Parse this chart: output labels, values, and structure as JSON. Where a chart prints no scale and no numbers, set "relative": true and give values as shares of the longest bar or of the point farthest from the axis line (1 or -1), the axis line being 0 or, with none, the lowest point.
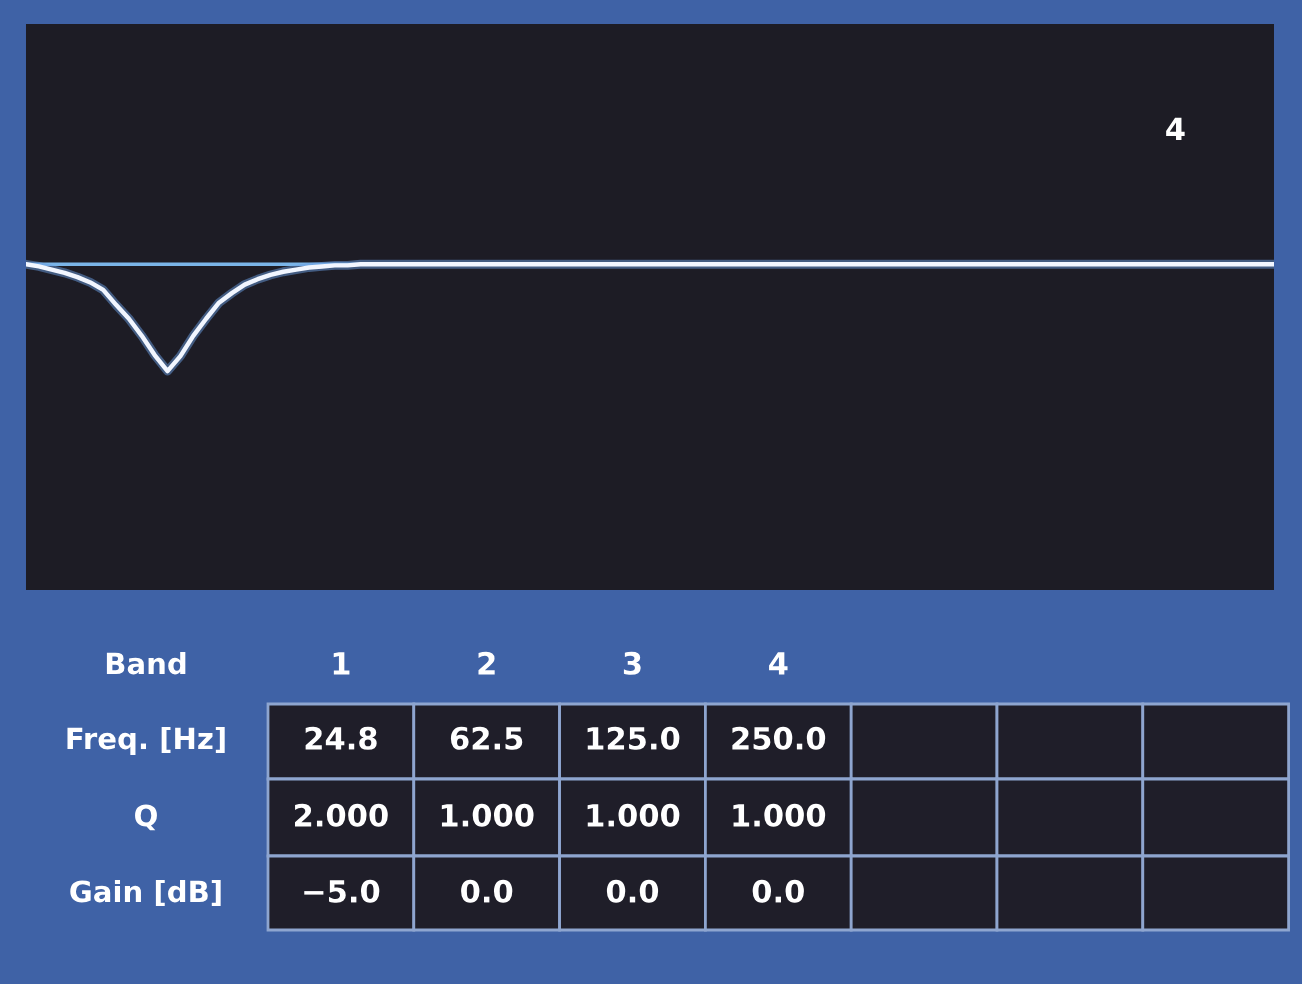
{
  "chart_data": {
    "type": "line",
    "relative": true,
    "categories": [
      null,
      null,
      null,
      null,
      null,
      null,
      null,
      null,
      null,
      null,
      null,
      null,
      null,
      null,
      null,
      null,
      null,
      null,
      null,
      null,
      null,
      null,
      null,
      null,
      null,
      null,
      null,
      null,
      null,
      null,
      null,
      null,
      null,
      null,
      null,
      null,
      null,
      null,
      null,
      null,
      null,
      null,
      null,
      null,
      null,
      null,
      null,
      null,
      null,
      null,
      null,
      null,
      null,
      null,
      null,
      null,
      null,
      null,
      null,
      null,
      null,
      null,
      null,
      null,
      null,
      null,
      null,
      null,
      null,
      null,
      null,
      null,
      null,
      null,
      null,
      null,
      null,
      null,
      null,
      null,
      null,
      null,
      null,
      null,
      null,
      null,
      null,
      null,
      null,
      null,
      null,
      null,
      null,
      null,
      null,
      null,
      null,
      null
    ],
    "series": [
      {
        "color": "#f2f6ff",
        "values": [
          0,
          -0.02,
          -0.05,
          -0.08,
          -0.12,
          -0.17,
          -0.24,
          -0.38,
          -0.51,
          -0.67,
          -0.85,
          -1,
          -0.86,
          -0.67,
          -0.51,
          -0.36,
          -0.27,
          -0.19,
          -0.14,
          -0.1,
          -0.07,
          -0.05,
          -0.03,
          -0.02,
          -0.01,
          -0.01,
          0,
          0,
          0,
          0,
          0,
          0,
          0,
          0,
          0,
          0,
          0,
          0,
          0,
          0,
          0,
          0,
          0,
          0,
          0,
          0,
          0,
          0,
          0,
          0,
          0,
          0,
          0,
          0,
          0,
          0,
          0,
          0,
          0,
          0,
          0,
          0,
          0,
          0,
          0,
          0,
          0,
          0,
          0,
          0,
          0,
          0,
          0,
          0,
          0,
          0,
          0,
          0,
          0,
          0,
          0,
          0,
          0,
          0,
          0,
          0,
          0,
          0,
          0,
          0,
          0,
          0,
          0,
          0,
          0,
          0,
          0,
          0
        ]
      }
    ],
    "ref_lines": [
      {
        "axis": "y",
        "value": 0,
        "color": "#7ab4e8"
      }
    ],
    "annotations": [
      "4",
      "Band",
      "1",
      "2",
      "3",
      "4",
      "Freq. [Hz]",
      "24.8",
      "62.5",
      "125.0",
      "250.0",
      "Q",
      "2.000",
      "1.000",
      "1.000",
      "1.000",
      "Gain [dB]",
      "−5.0",
      "0.0",
      "0.0",
      "0.0"
    ]
  }
}
